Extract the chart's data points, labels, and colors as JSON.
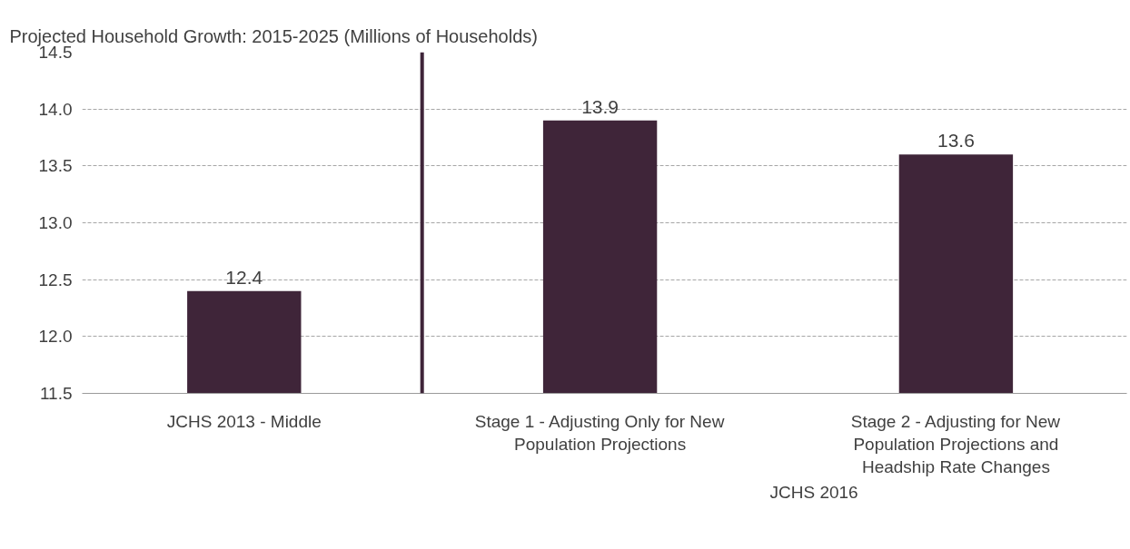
{
  "chart_data": {
    "type": "bar",
    "title": "Projected Household Growth: 2015-2025 (Millions of Households)",
    "categories": [
      "JCHS 2013 - Middle",
      "Stage 1 - Adjusting Only for New Population Projections",
      "Stage 2 - Adjusting for New Population Projections and Headship Rate Changes"
    ],
    "values": [
      12.4,
      13.9,
      13.6
    ],
    "color": "#3f2539",
    "ylim": [
      11.5,
      14.5
    ],
    "yticks": [
      "11.5",
      "12.0",
      "12.5",
      "13.0",
      "13.5",
      "14.0",
      "14.5"
    ],
    "grid": "y",
    "data_labels": true,
    "annotations": [
      "JCHS 2016"
    ]
  }
}
